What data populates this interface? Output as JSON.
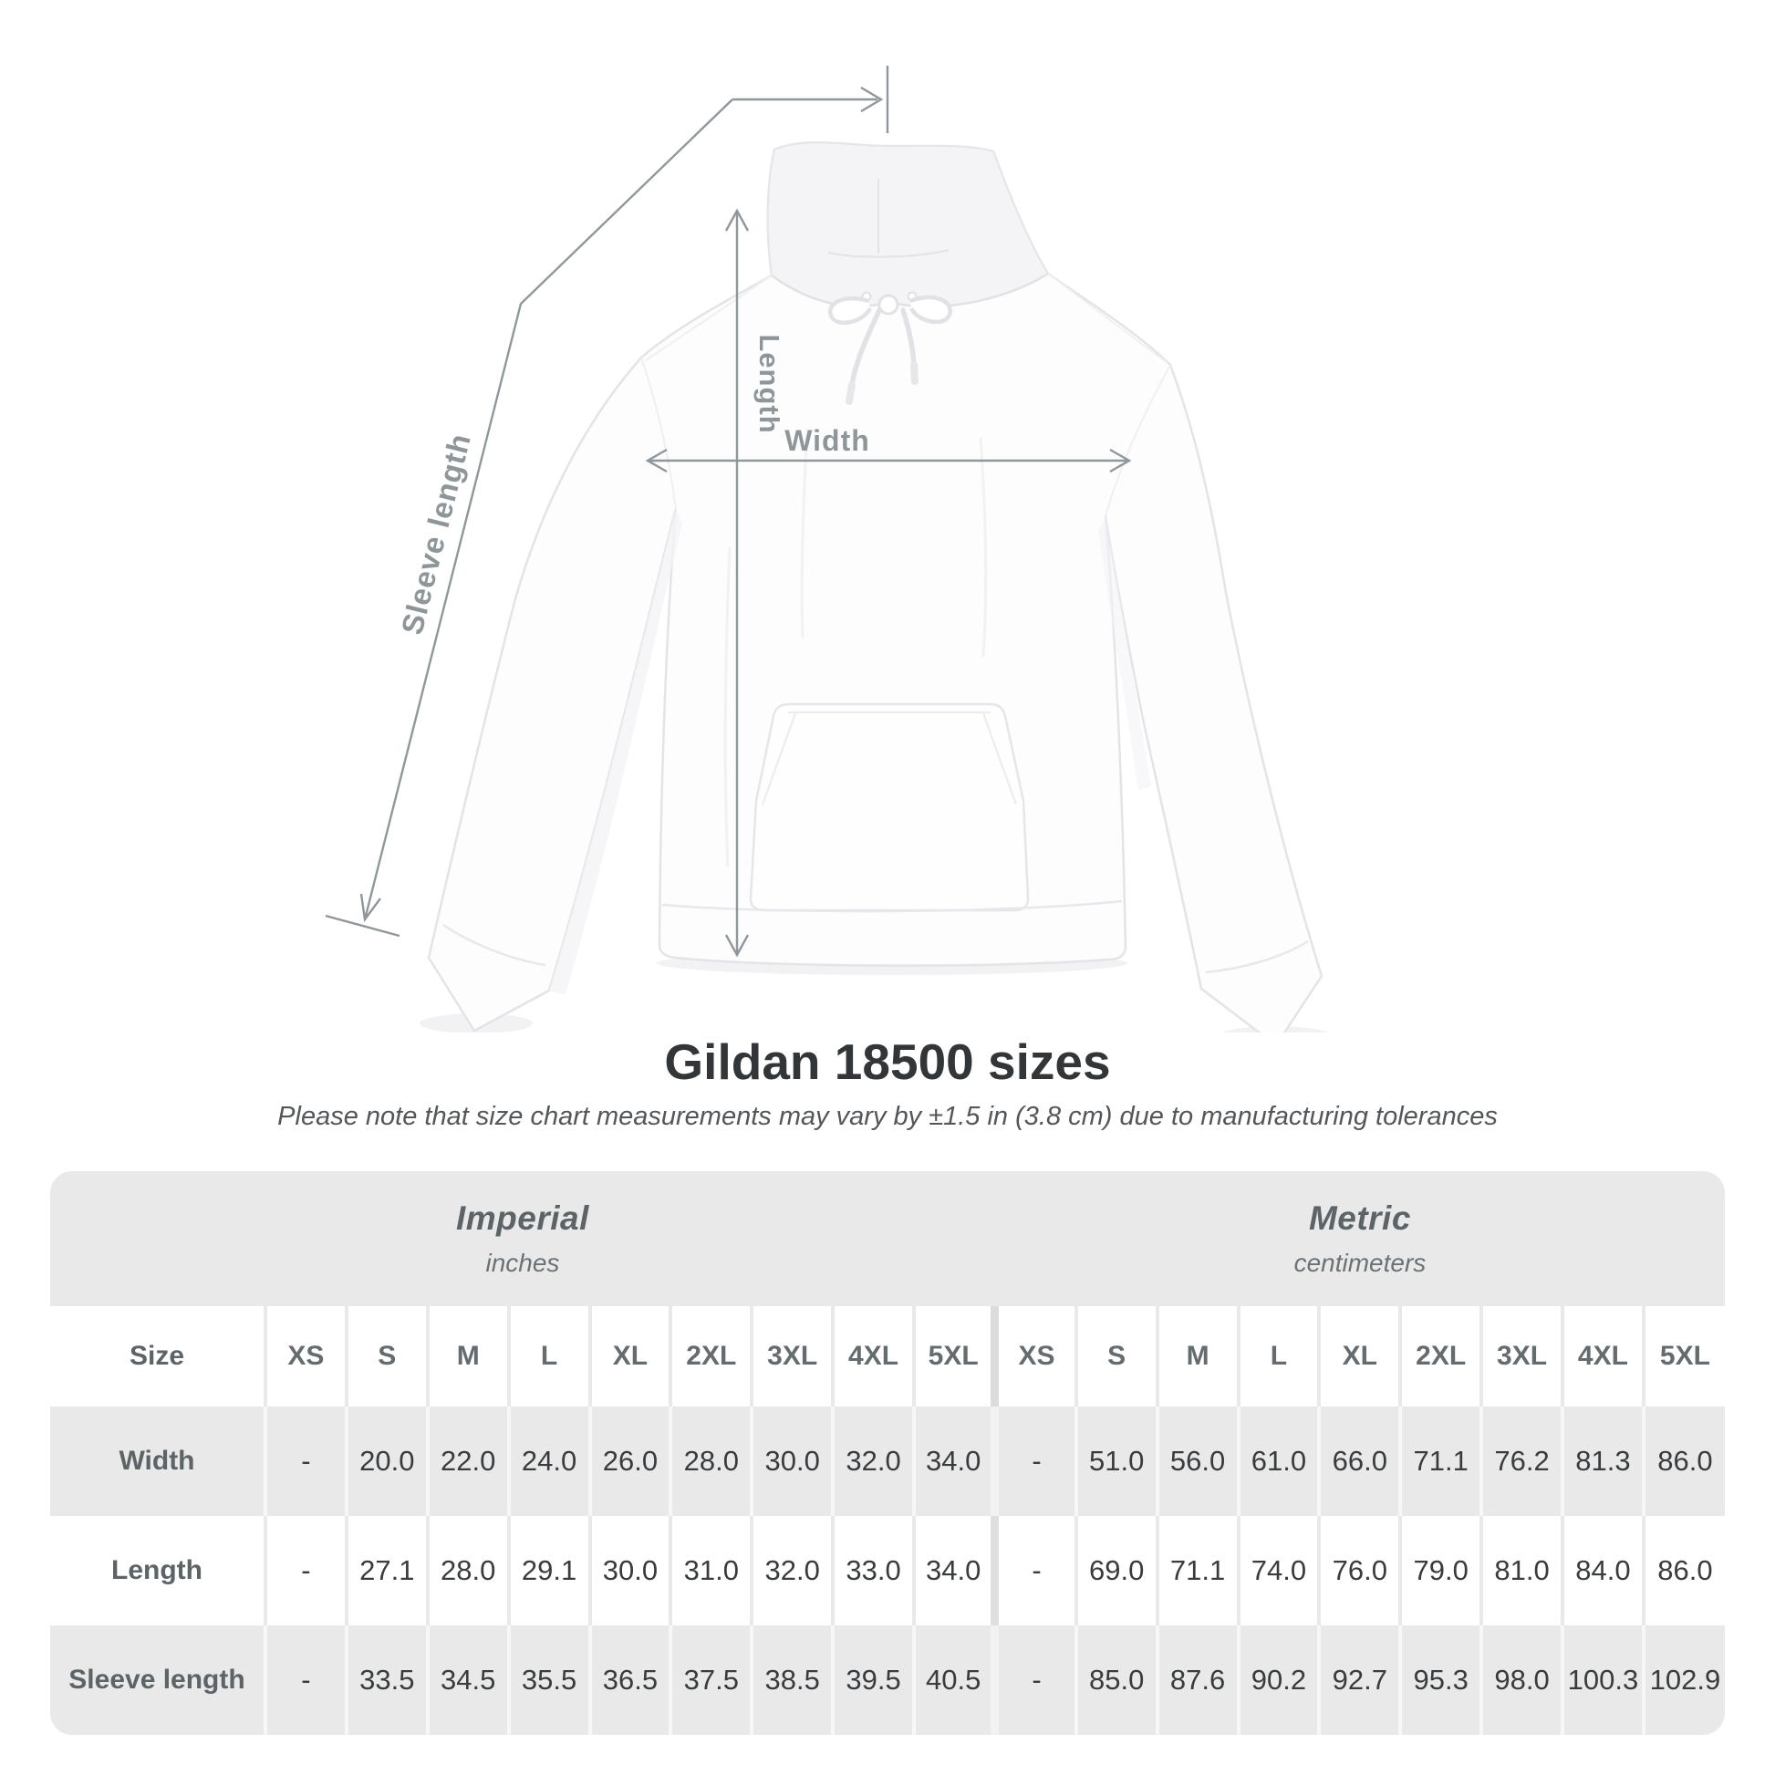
{
  "diagram": {
    "sleeve_length_label": "Sleeve length",
    "length_label": "Length",
    "width_label": "Width"
  },
  "heading": {
    "title": "Gildan 18500 sizes",
    "subtitle": "Please note that size chart measurements may vary by ±1.5 in (3.8 cm) due to manufacturing tolerances"
  },
  "table": {
    "groups": [
      {
        "label": "Imperial",
        "unit": "inches"
      },
      {
        "label": "Metric",
        "unit": "centimeters"
      }
    ],
    "size_column_header": "Size",
    "sizes": [
      "XS",
      "S",
      "M",
      "L",
      "XL",
      "2XL",
      "3XL",
      "4XL",
      "5XL"
    ],
    "rows": [
      {
        "label": "Width",
        "imperial": [
          "-",
          "20.0",
          "22.0",
          "24.0",
          "26.0",
          "28.0",
          "30.0",
          "32.0",
          "34.0"
        ],
        "metric": [
          "-",
          "51.0",
          "56.0",
          "61.0",
          "66.0",
          "71.1",
          "76.2",
          "81.3",
          "86.0"
        ]
      },
      {
        "label": "Length",
        "imperial": [
          "-",
          "27.1",
          "28.0",
          "29.1",
          "30.0",
          "31.0",
          "32.0",
          "33.0",
          "34.0"
        ],
        "metric": [
          "-",
          "69.0",
          "71.1",
          "74.0",
          "76.0",
          "79.0",
          "81.0",
          "84.0",
          "86.0"
        ]
      },
      {
        "label": "Sleeve length",
        "imperial": [
          "-",
          "33.5",
          "34.5",
          "35.5",
          "36.5",
          "37.5",
          "38.5",
          "39.5",
          "40.5"
        ],
        "metric": [
          "-",
          "85.0",
          "87.6",
          "90.2",
          "92.7",
          "95.3",
          "98.0",
          "100.3",
          "102.9"
        ]
      }
    ]
  },
  "chart_data": {
    "type": "table",
    "title": "Gildan 18500 sizes",
    "columns": [
      "Size",
      "XS",
      "S",
      "M",
      "L",
      "XL",
      "2XL",
      "3XL",
      "4XL",
      "5XL"
    ],
    "sections": [
      {
        "name": "Imperial (inches)",
        "rows": [
          [
            "Width",
            "-",
            20.0,
            22.0,
            24.0,
            26.0,
            28.0,
            30.0,
            32.0,
            34.0
          ],
          [
            "Length",
            "-",
            27.1,
            28.0,
            29.1,
            30.0,
            31.0,
            32.0,
            33.0,
            34.0
          ],
          [
            "Sleeve length",
            "-",
            33.5,
            34.5,
            35.5,
            36.5,
            37.5,
            38.5,
            39.5,
            40.5
          ]
        ]
      },
      {
        "name": "Metric (centimeters)",
        "rows": [
          [
            "Width",
            "-",
            51.0,
            56.0,
            61.0,
            66.0,
            71.1,
            76.2,
            81.3,
            86.0
          ],
          [
            "Length",
            "-",
            69.0,
            71.1,
            74.0,
            76.0,
            79.0,
            81.0,
            84.0,
            86.0
          ],
          [
            "Sleeve length",
            "-",
            85.0,
            87.6,
            90.2,
            92.7,
            95.3,
            98.0,
            100.3,
            102.9
          ]
        ]
      }
    ]
  },
  "colors": {
    "table_band": "#e9e9e9",
    "measure_line": "#90979b",
    "measure_label": "#8f969a",
    "title_text": "#333639",
    "subtitle_text": "#54575a",
    "value_text": "#393c3e",
    "header_text": "#656c70"
  }
}
